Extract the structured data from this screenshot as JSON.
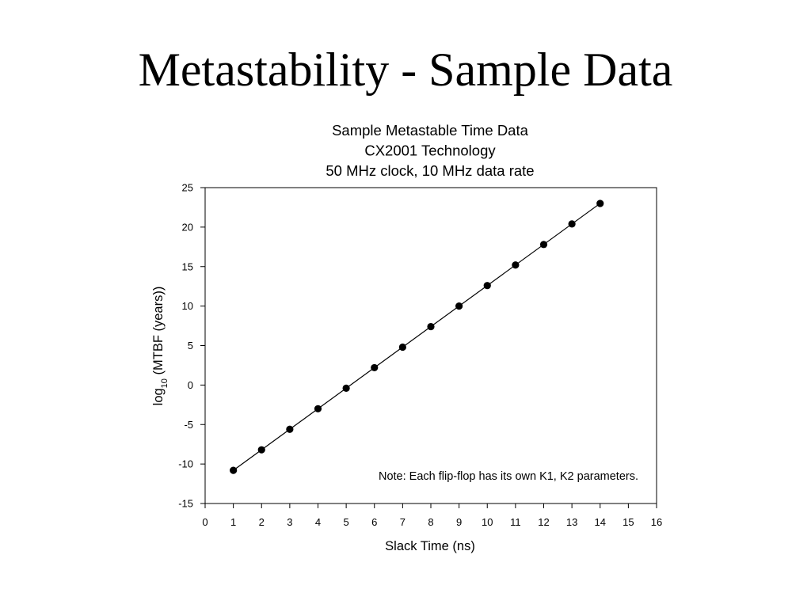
{
  "slide": {
    "title": "Metastability - Sample Data"
  },
  "chart_data": {
    "type": "scatter",
    "title_lines": [
      "Sample Metastable Time Data",
      "CX2001 Technology",
      "50 MHz clock, 10 MHz data rate"
    ],
    "xlabel": "Slack Time (ns)",
    "ylabel": {
      "prefix": "log",
      "subscript": "10",
      "suffix": " (MTBF (years))"
    },
    "xlim": [
      0,
      16
    ],
    "ylim": [
      -15,
      25
    ],
    "x_ticks": [
      0,
      1,
      2,
      3,
      4,
      5,
      6,
      7,
      8,
      9,
      10,
      11,
      12,
      13,
      14,
      15,
      16
    ],
    "y_ticks": [
      -15,
      -10,
      -5,
      0,
      5,
      10,
      15,
      20,
      25
    ],
    "grid": false,
    "trendline": true,
    "annotation": "Note: Each flip-flop has its own K1, K2 parameters.",
    "points": [
      {
        "x": 1,
        "y": -10.8
      },
      {
        "x": 2,
        "y": -8.2
      },
      {
        "x": 3,
        "y": -5.6
      },
      {
        "x": 4,
        "y": -3.0
      },
      {
        "x": 5,
        "y": -0.4
      },
      {
        "x": 6,
        "y": 2.2
      },
      {
        "x": 7,
        "y": 4.8
      },
      {
        "x": 8,
        "y": 7.4
      },
      {
        "x": 9,
        "y": 10.0
      },
      {
        "x": 10,
        "y": 12.6
      },
      {
        "x": 11,
        "y": 15.2
      },
      {
        "x": 12,
        "y": 17.8
      },
      {
        "x": 13,
        "y": 20.4
      },
      {
        "x": 14,
        "y": 23.0
      }
    ],
    "colors": {
      "marker": "#000000",
      "line": "#000000",
      "axis": "#000000"
    }
  }
}
